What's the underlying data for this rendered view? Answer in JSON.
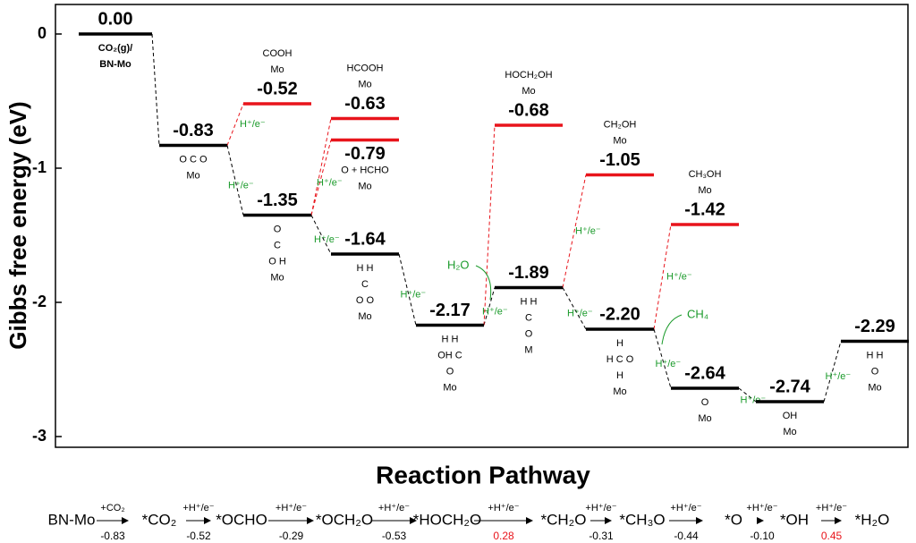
{
  "chart_data": {
    "type": "energy",
    "ylabel": "Gibbs free energy (eV)",
    "xlabel": "Reaction Pathway",
    "ylim": [
      -3.08,
      0.22
    ],
    "yticks": [
      0,
      -1,
      -2,
      -3
    ],
    "series": [
      {
        "color": "#000000",
        "values": [
          0,
          -0.83,
          -1.35,
          -1.64,
          -2.17,
          -1.89,
          -2.2,
          -2.64,
          -2.74,
          -2.29
        ],
        "value_labels": [
          "0.00",
          "-0.83",
          "-1.35",
          "-1.64",
          "-2.17",
          "-1.89",
          "-2.20",
          "-2.64",
          "-2.74",
          "-2.29"
        ],
        "structures": [
          [
            "CO₂(g)/",
            "BN-Mo"
          ],
          [
            "O C O",
            "Mo"
          ],
          [
            "O",
            "C",
            "O   H",
            "Mo"
          ],
          [
            "H   H",
            "C",
            "O O",
            "Mo"
          ],
          [
            "H  H",
            "OH C",
            "O",
            "Mo"
          ],
          [
            "H  H",
            "C",
            "O",
            "M"
          ],
          [
            "H",
            "H C O",
            "H",
            "Mo"
          ],
          [
            "O",
            "Mo"
          ],
          [
            "OH",
            "Mo"
          ],
          [
            "H   H",
            "O",
            "Mo"
          ]
        ]
      },
      {
        "color": "#e8141b",
        "values": [
          null,
          null,
          -0.52,
          -0.63,
          null,
          -0.68,
          -1.05,
          -1.42,
          null,
          null
        ],
        "value_labels": [
          null,
          null,
          "-0.52",
          "-0.63",
          null,
          "-0.68",
          "-1.05",
          "-1.42",
          null,
          null
        ],
        "structures": [
          null,
          null,
          [
            "COOH",
            "Mo"
          ],
          [
            "HCOOH",
            "Mo"
          ],
          null,
          [
            "HOCH₂OH",
            "Mo"
          ],
          [
            "CH₂OH",
            "Mo"
          ],
          [
            "CH₃OH",
            "Mo"
          ],
          null,
          null
        ]
      },
      {
        "color": "#e8141b",
        "values": [
          null,
          null,
          null,
          -0.79,
          null,
          null,
          null,
          null,
          null,
          null
        ],
        "value_labels": [
          null,
          null,
          null,
          "-0.79",
          null,
          null,
          null,
          null,
          null,
          null
        ],
        "structures": [
          null,
          null,
          null,
          [
            "O + HCHO",
            "Mo"
          ],
          null,
          null,
          null,
          null,
          null,
          null
        ]
      }
    ],
    "step_label": "H⁺/e⁻",
    "annotations": [
      "H₂O",
      "CH₄"
    ],
    "annotation_color": "#1a9a2a"
  },
  "pathway": {
    "species": [
      "BN-Mo",
      "*CO₂",
      "*OCHO",
      "*OCH₂O",
      "*HOCH₂O",
      "*CH₂O",
      "*CH₃O",
      "*O",
      "*OH",
      "*H₂O"
    ],
    "steps": [
      {
        "reagent": "+CO₂",
        "dG": "-0.83",
        "color": "#000000"
      },
      {
        "reagent": "+H⁺/e⁻",
        "dG": "-0.52",
        "color": "#000000"
      },
      {
        "reagent": "+H⁺/e⁻",
        "dG": "-0.29",
        "color": "#000000"
      },
      {
        "reagent": "+H⁺/e⁻",
        "dG": "-0.53",
        "color": "#000000"
      },
      {
        "reagent": "+H⁺/e⁻",
        "dG": "0.28",
        "color": "#e8141b"
      },
      {
        "reagent": "+H⁺/e⁻",
        "dG": "-0.31",
        "color": "#000000"
      },
      {
        "reagent": "+H⁺/e⁻",
        "dG": "-0.44",
        "color": "#000000"
      },
      {
        "reagent": "+H⁺/e⁻",
        "dG": "-0.10",
        "color": "#000000"
      },
      {
        "reagent": "+H⁺/e⁻",
        "dG": "0.45",
        "color": "#e8141b"
      }
    ]
  }
}
